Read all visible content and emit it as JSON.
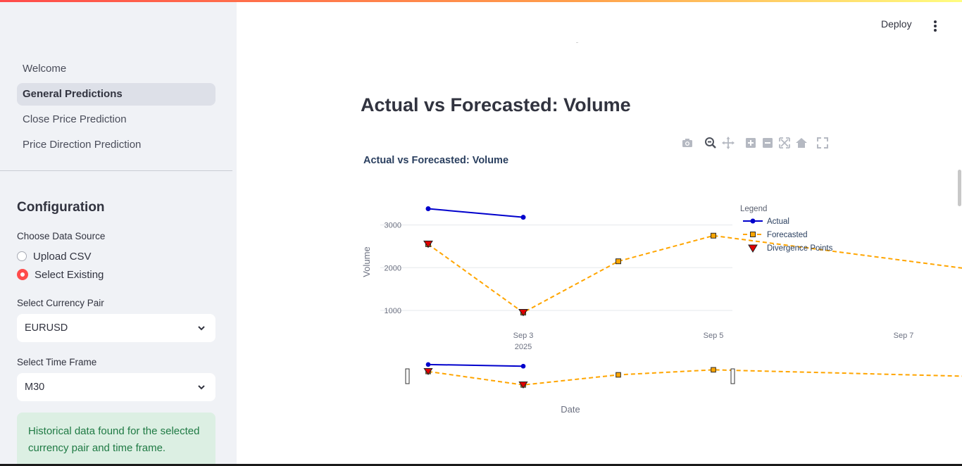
{
  "sidebar": {
    "nav": [
      {
        "label": "Welcome",
        "active": false
      },
      {
        "label": "General Predictions",
        "active": true
      },
      {
        "label": "Close Price Prediction",
        "active": false
      },
      {
        "label": "Price Direction Prediction",
        "active": false
      }
    ],
    "config_title": "Configuration",
    "data_source": {
      "label": "Choose Data Source",
      "options": [
        "Upload CSV",
        "Select Existing"
      ],
      "selected": "Select Existing"
    },
    "currency_pair": {
      "label": "Select Currency Pair",
      "value": "EURUSD"
    },
    "time_frame": {
      "label": "Select Time Frame",
      "value": "M30"
    },
    "alert": "Historical data found for the selected currency pair and time frame."
  },
  "header": {
    "deploy_label": "Deploy"
  },
  "main": {
    "title": "Actual vs Forecasted: Volume"
  },
  "modebar": [
    "camera-icon",
    "zoom-icon",
    "pan-icon",
    "zoom-in-icon",
    "zoom-out-icon",
    "autoscale-icon",
    "reset-axes-icon",
    "fullscreen-icon"
  ],
  "colors": {
    "accent": "#ff4b4b",
    "actual": "#0000cc",
    "forecasted": "#ffa500",
    "divergence": "#e00000",
    "success_bg": "#dcefe3",
    "success_text": "#1f7a44"
  },
  "chart_data": {
    "type": "line",
    "title": "Actual vs Forecasted: Volume",
    "xlabel": "Date",
    "ylabel": "Volume",
    "x_ticks": [
      {
        "day": 3,
        "label": "Sep 3",
        "sub": "2025"
      },
      {
        "day": 5,
        "label": "Sep 5",
        "sub": ""
      },
      {
        "day": 7,
        "label": "Sep 7",
        "sub": ""
      }
    ],
    "y_ticks": [
      1000,
      2000,
      3000
    ],
    "xlim": [
      2.0,
      8.5
    ],
    "ylim": [
      600,
      3450
    ],
    "legend_title": "Legend",
    "legend_position": "right",
    "series": [
      {
        "name": "Actual",
        "x": [
          2.0,
          3.0
        ],
        "y": [
          3380,
          3180
        ]
      },
      {
        "name": "Forecasted",
        "x": [
          2.0,
          3.0,
          4.0,
          5.0,
          8.0
        ],
        "y": [
          2550,
          950,
          2150,
          2750,
          1880
        ]
      },
      {
        "name": "Divergence Points",
        "x": [
          2.0,
          3.0
        ],
        "y": [
          2550,
          950
        ]
      }
    ],
    "range_slider": true
  }
}
